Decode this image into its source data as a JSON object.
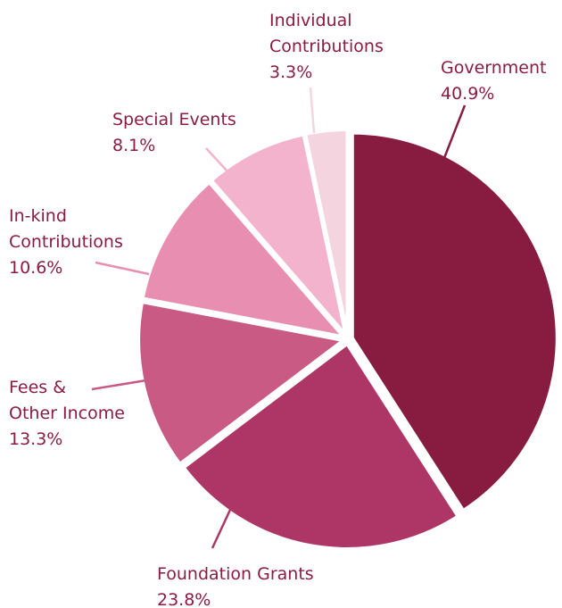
{
  "chart_data": {
    "type": "pie",
    "title": "",
    "slices": [
      {
        "label_lines": [
          "Government"
        ],
        "value": 40.9,
        "value_label": "40.9%",
        "color": "#871b40"
      },
      {
        "label_lines": [
          "Foundation Grants"
        ],
        "value": 23.8,
        "value_label": "23.8%",
        "color": "#ad3666"
      },
      {
        "label_lines": [
          "Fees &",
          "Other Income"
        ],
        "value": 13.3,
        "value_label": "13.3%",
        "color": "#c85a84"
      },
      {
        "label_lines": [
          "In-kind",
          "Contributions"
        ],
        "value": 10.6,
        "value_label": "10.6%",
        "color": "#e88fb1"
      },
      {
        "label_lines": [
          "Special Events"
        ],
        "value": 8.1,
        "value_label": "8.1%",
        "color": "#f3b3cd"
      },
      {
        "label_lines": [
          "Individual",
          "Contributions"
        ],
        "value": 3.3,
        "value_label": "3.3%",
        "color": "#f4d4de"
      }
    ],
    "start": "12 o'clock",
    "direction": "clockwise",
    "label_color": "#8a1c44",
    "separator_color": "#ffffff"
  }
}
